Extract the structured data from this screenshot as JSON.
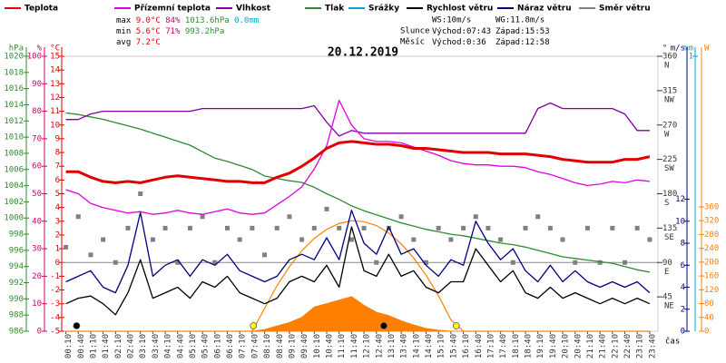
{
  "chart_data": {
    "type": "line",
    "title": "20.12.2019",
    "x_axis_label": "čas",
    "categories": [
      "00:10",
      "00:40",
      "01:10",
      "01:40",
      "02:10",
      "02:40",
      "03:10",
      "03:40",
      "04:10",
      "04:40",
      "05:10",
      "05:40",
      "06:10",
      "06:40",
      "07:10",
      "07:40",
      "08:10",
      "08:40",
      "09:10",
      "09:40",
      "10:10",
      "10:40",
      "11:10",
      "11:40",
      "12:10",
      "12:40",
      "13:10",
      "13:40",
      "14:10",
      "14:40",
      "15:10",
      "15:40",
      "16:10",
      "16:40",
      "17:10",
      "17:40",
      "18:10",
      "18:40",
      "19:10",
      "19:40",
      "20:10",
      "20:40",
      "21:10",
      "21:40",
      "22:10",
      "22:40",
      "23:10",
      "23:40"
    ],
    "axes": {
      "press": {
        "label": "hPa",
        "lim": [
          986,
          1020
        ],
        "ticks": [
          986,
          988,
          990,
          992,
          994,
          996,
          998,
          1000,
          1002,
          1004,
          1006,
          1008,
          1010,
          1012,
          1014,
          1016,
          1018,
          1020
        ],
        "color": "#2e8b2e"
      },
      "hum": {
        "label": "%",
        "lim": [
          0,
          100
        ],
        "ticks": [
          0,
          10,
          20,
          30,
          40,
          50,
          60,
          70,
          80,
          90,
          100
        ],
        "color": "#d0006a"
      },
      "temp": {
        "label": "°C",
        "lim": [
          -5,
          15
        ],
        "ticks": [
          -5,
          -4,
          -3,
          -2,
          -1,
          0,
          1,
          2,
          3,
          4,
          5,
          6,
          7,
          8,
          9,
          10,
          11,
          12,
          13,
          14,
          15
        ],
        "color": "#e00000"
      },
      "dir": {
        "label": "°",
        "lim": [
          0,
          360
        ],
        "ticks": [
          45,
          90,
          135,
          180,
          225,
          270,
          315,
          360
        ],
        "names": [
          "NE",
          "E",
          "SE",
          "S",
          "SW",
          "W",
          "NW",
          "N"
        ],
        "color": "#333333"
      },
      "wind": {
        "label": "m/s",
        "lim": [
          0,
          25
        ],
        "ticks": [
          0,
          2,
          4,
          6,
          8,
          10,
          12
        ],
        "color": "#000080"
      },
      "rain": {
        "label": "mm",
        "lim": [
          0,
          1
        ],
        "ticks": [
          1
        ],
        "color": "#00a8d0"
      },
      "solar": {
        "label": "W",
        "lim": [
          0,
          796
        ],
        "ticks": [
          0,
          40,
          80,
          120,
          160,
          200,
          240,
          280,
          320,
          360
        ],
        "color": "#ff8000"
      }
    },
    "series": [
      {
        "name": "Teplota",
        "color": "#e00000",
        "axis": "temp",
        "kind": "line",
        "values": [
          6.6,
          6.6,
          6.2,
          5.9,
          5.8,
          5.9,
          5.8,
          6.0,
          6.2,
          6.3,
          6.2,
          6.1,
          6.0,
          5.9,
          5.9,
          5.8,
          5.8,
          6.2,
          6.5,
          7.0,
          7.6,
          8.3,
          8.7,
          8.8,
          8.7,
          8.6,
          8.6,
          8.5,
          8.3,
          8.3,
          8.2,
          8.1,
          8.0,
          8.0,
          8.0,
          7.9,
          7.9,
          7.9,
          7.8,
          7.7,
          7.5,
          7.4,
          7.3,
          7.3,
          7.3,
          7.5,
          7.5,
          7.7
        ]
      },
      {
        "name": "Přízemní teplota",
        "color": "#e000e0",
        "axis": "temp",
        "kind": "line",
        "values": [
          5.3,
          5.0,
          4.3,
          4.0,
          3.8,
          3.6,
          3.7,
          3.5,
          3.6,
          3.8,
          3.6,
          3.5,
          3.7,
          3.9,
          3.6,
          3.5,
          3.6,
          4.2,
          4.8,
          5.5,
          6.8,
          8.5,
          11.8,
          10.0,
          9.0,
          8.8,
          8.8,
          8.7,
          8.4,
          8.1,
          7.8,
          7.4,
          7.2,
          7.1,
          7.1,
          7.0,
          7.0,
          6.9,
          6.6,
          6.4,
          6.1,
          5.8,
          5.6,
          5.7,
          5.9,
          5.8,
          6.0,
          5.9
        ]
      },
      {
        "name": "Vlhkost",
        "color": "#8000a0",
        "axis": "hum",
        "kind": "line",
        "values": [
          77,
          77,
          79,
          80,
          80,
          80,
          80,
          80,
          80,
          80,
          80,
          81,
          81,
          81,
          81,
          81,
          81,
          81,
          81,
          81,
          82,
          76,
          71,
          73,
          72,
          72,
          72,
          72,
          72,
          72,
          72,
          72,
          72,
          72,
          72,
          72,
          72,
          72,
          81,
          83,
          81,
          81,
          81,
          81,
          81,
          79,
          73,
          73
        ]
      },
      {
        "name": "Tlak",
        "color": "#2e8b2e",
        "axis": "press",
        "kind": "line",
        "values": [
          1013.0,
          1012.8,
          1012.5,
          1012.2,
          1011.8,
          1011.4,
          1011.0,
          1010.5,
          1010.0,
          1009.5,
          1009.0,
          1008.2,
          1007.4,
          1007.0,
          1006.5,
          1006.0,
          1005.2,
          1004.9,
          1004.6,
          1004.4,
          1003.8,
          1003.0,
          1002.3,
          1001.5,
          1000.9,
          1000.4,
          999.9,
          999.4,
          999.0,
          998.6,
          998.3,
          998.0,
          997.8,
          997.5,
          997.2,
          996.9,
          996.7,
          996.4,
          996.0,
          995.6,
          995.2,
          995.0,
          994.8,
          994.6,
          994.4,
          994.0,
          993.6,
          993.3
        ]
      },
      {
        "name": "Srážky",
        "color": "#00a8d0",
        "axis": "rain",
        "kind": "bars",
        "values": [
          0,
          0,
          0,
          0,
          0,
          0,
          0,
          0,
          0,
          0,
          0,
          0,
          0,
          0,
          0,
          0,
          0,
          0,
          0,
          0,
          0,
          0,
          0,
          0,
          0,
          0,
          0,
          0,
          0,
          0,
          0,
          0,
          0,
          0,
          0,
          0,
          0,
          0,
          0,
          0,
          0,
          0,
          0,
          0,
          0,
          0,
          0,
          0
        ]
      },
      {
        "name": "Rychlost větru",
        "color": "#000000",
        "axis": "wind",
        "kind": "line",
        "values": [
          2.5,
          3.0,
          3.2,
          2.5,
          1.5,
          3.5,
          6.5,
          3.0,
          3.5,
          4.0,
          3.0,
          4.5,
          4.0,
          5.0,
          3.5,
          3.0,
          2.5,
          3.0,
          4.5,
          5.0,
          4.5,
          6.0,
          4.0,
          9.5,
          5.5,
          5.0,
          7.0,
          5.0,
          5.5,
          4.0,
          3.5,
          4.5,
          4.5,
          7.5,
          6.0,
          4.5,
          5.5,
          3.5,
          3.0,
          4.0,
          3.0,
          3.5,
          3.0,
          2.5,
          3.0,
          2.5,
          3.0,
          2.5
        ]
      },
      {
        "name": "Náraz větru",
        "color": "#000080",
        "axis": "wind",
        "kind": "line",
        "values": [
          4.5,
          5.0,
          5.5,
          4.0,
          3.5,
          6.0,
          10.8,
          5.0,
          6.0,
          6.5,
          5.0,
          6.5,
          6.0,
          7.0,
          5.5,
          5.0,
          4.5,
          5.0,
          6.5,
          7.0,
          6.5,
          8.5,
          6.5,
          11.0,
          8.0,
          7.0,
          9.5,
          7.0,
          7.5,
          6.0,
          5.0,
          6.5,
          6.0,
          10.0,
          8.0,
          6.5,
          7.5,
          5.5,
          4.5,
          6.0,
          4.5,
          5.5,
          4.5,
          4.0,
          4.5,
          4.0,
          4.5,
          3.5
        ]
      },
      {
        "name": "Směr větru",
        "color": "#808080",
        "axis": "dir",
        "kind": "squares",
        "values": [
          110,
          150,
          100,
          120,
          90,
          135,
          180,
          120,
          135,
          90,
          135,
          150,
          90,
          135,
          120,
          135,
          100,
          135,
          150,
          120,
          135,
          160,
          135,
          120,
          135,
          90,
          135,
          150,
          120,
          90,
          135,
          120,
          135,
          150,
          135,
          120,
          90,
          135,
          150,
          135,
          120,
          90,
          135,
          90,
          135,
          90,
          135,
          120
        ]
      }
    ],
    "solar": {
      "color": "#ff8000",
      "axis": "solar",
      "values": [
        0,
        0,
        0,
        0,
        0,
        0,
        0,
        0,
        0,
        0,
        0,
        0,
        0,
        0,
        0,
        0,
        5,
        15,
        25,
        40,
        70,
        80,
        90,
        100,
        75,
        55,
        45,
        30,
        18,
        8,
        3,
        0,
        0,
        0,
        0,
        0,
        0,
        0,
        0,
        0,
        0,
        0,
        0,
        0,
        0,
        0,
        0,
        0
      ],
      "max_values": [
        0,
        0,
        0,
        0,
        0,
        0,
        0,
        0,
        0,
        0,
        0,
        0,
        0,
        0,
        0,
        0,
        66,
        132,
        187,
        233,
        269,
        295,
        312,
        320,
        317,
        306,
        284,
        253,
        212,
        162,
        103,
        33,
        0,
        0,
        0,
        0,
        0,
        0,
        0,
        0,
        0,
        0,
        0,
        0,
        0,
        0,
        0,
        0
      ]
    },
    "stats": [
      {
        "label": "max",
        "temp": "9.0°C",
        "hum": "84%",
        "press": "1013.6hPa",
        "rain": "0.0mm"
      },
      {
        "label": "min",
        "temp": "5.6°C",
        "hum": "71%",
        "press": "993.2hPa"
      },
      {
        "label": "avg",
        "temp": "7.2°C"
      }
    ],
    "wind_stats": {
      "ws": "WS:10m/s",
      "wg": "WG:11.8m/s"
    },
    "sun": {
      "label": "Slunce",
      "rise_label": "Východ:",
      "rise": "07:43",
      "set_label": "Západ:",
      "set": "15:53"
    },
    "moon": {
      "label": "Měsíc",
      "rise_label": "Východ:",
      "rise": "0:36",
      "set_label": "Západ:",
      "set": "12:58"
    }
  }
}
